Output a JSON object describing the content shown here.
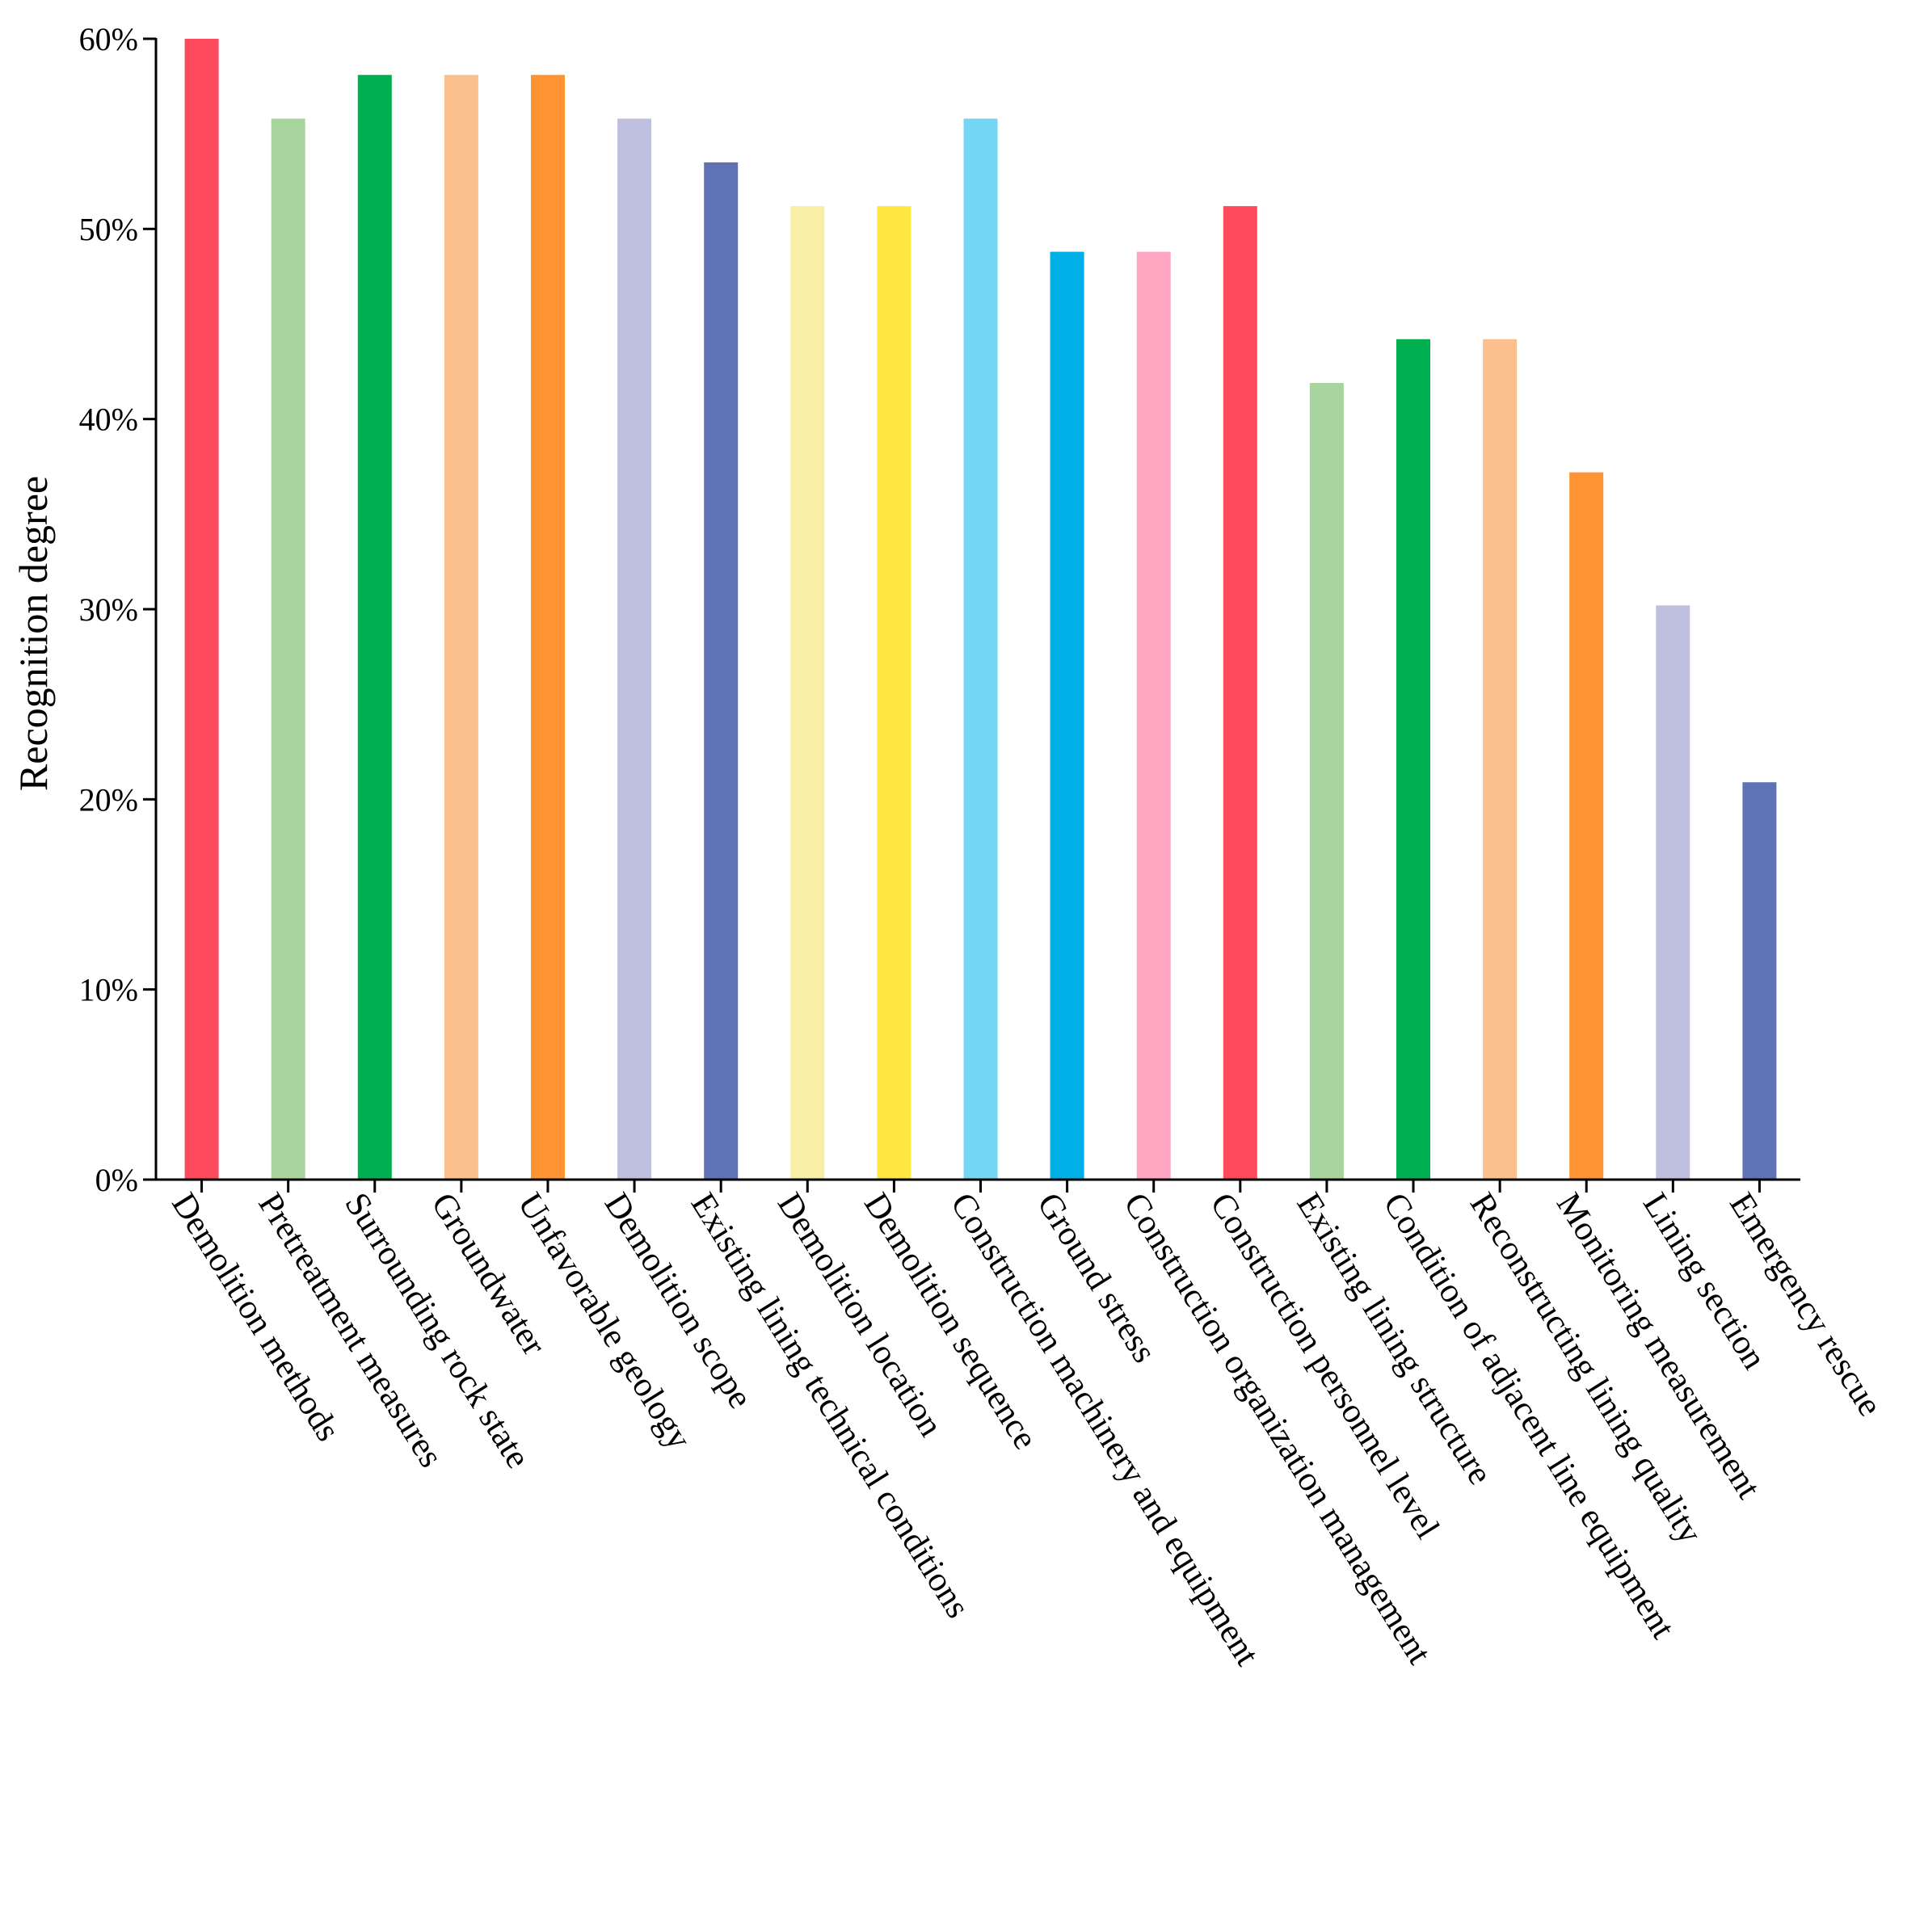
{
  "chart_data": {
    "type": "bar",
    "title": "",
    "xlabel": "",
    "ylabel": "Recognition degree",
    "ylim": [
      0,
      60
    ],
    "yticks": [
      0,
      10,
      20,
      30,
      40,
      50,
      60
    ],
    "ytick_labels": [
      "0%",
      "10%",
      "20%",
      "30%",
      "40%",
      "50%",
      "60%"
    ],
    "grid": false,
    "legend": "none",
    "categories": [
      "Demolition methods",
      "Pretreatment measures",
      "Surrounding rock state",
      "Groundwater",
      "Unfavorable geology",
      "Demolition scope",
      "Existing lining technical conditions",
      "Demolition location",
      "Demolition sequence",
      "Construction machinery and equipment",
      "Ground stress",
      "Construction organization management",
      "Construction personnel level",
      "Existing lining structure",
      "Condition of adjacent line equipment",
      "Reconstructing lining quality",
      "Monitoring measurement",
      "Lining section",
      "Emergency rescue"
    ],
    "values": [
      60.0,
      55.8,
      58.1,
      58.1,
      58.1,
      55.8,
      53.5,
      51.2,
      51.2,
      55.8,
      48.8,
      48.8,
      51.2,
      41.9,
      44.2,
      44.2,
      37.2,
      30.2,
      20.9
    ],
    "colors": [
      "#FF4A5E",
      "#A8D59E",
      "#00B050",
      "#FCC08F",
      "#FF9331",
      "#BFC0DF",
      "#5E72B5",
      "#F9EEA5",
      "#FFE640",
      "#73D7F4",
      "#00AFE6",
      "#FFA6C3",
      "#FF4A5E",
      "#A8D59E",
      "#00B050",
      "#FCC08F",
      "#FF9331",
      "#BFC0DF",
      "#5E72B5"
    ]
  }
}
